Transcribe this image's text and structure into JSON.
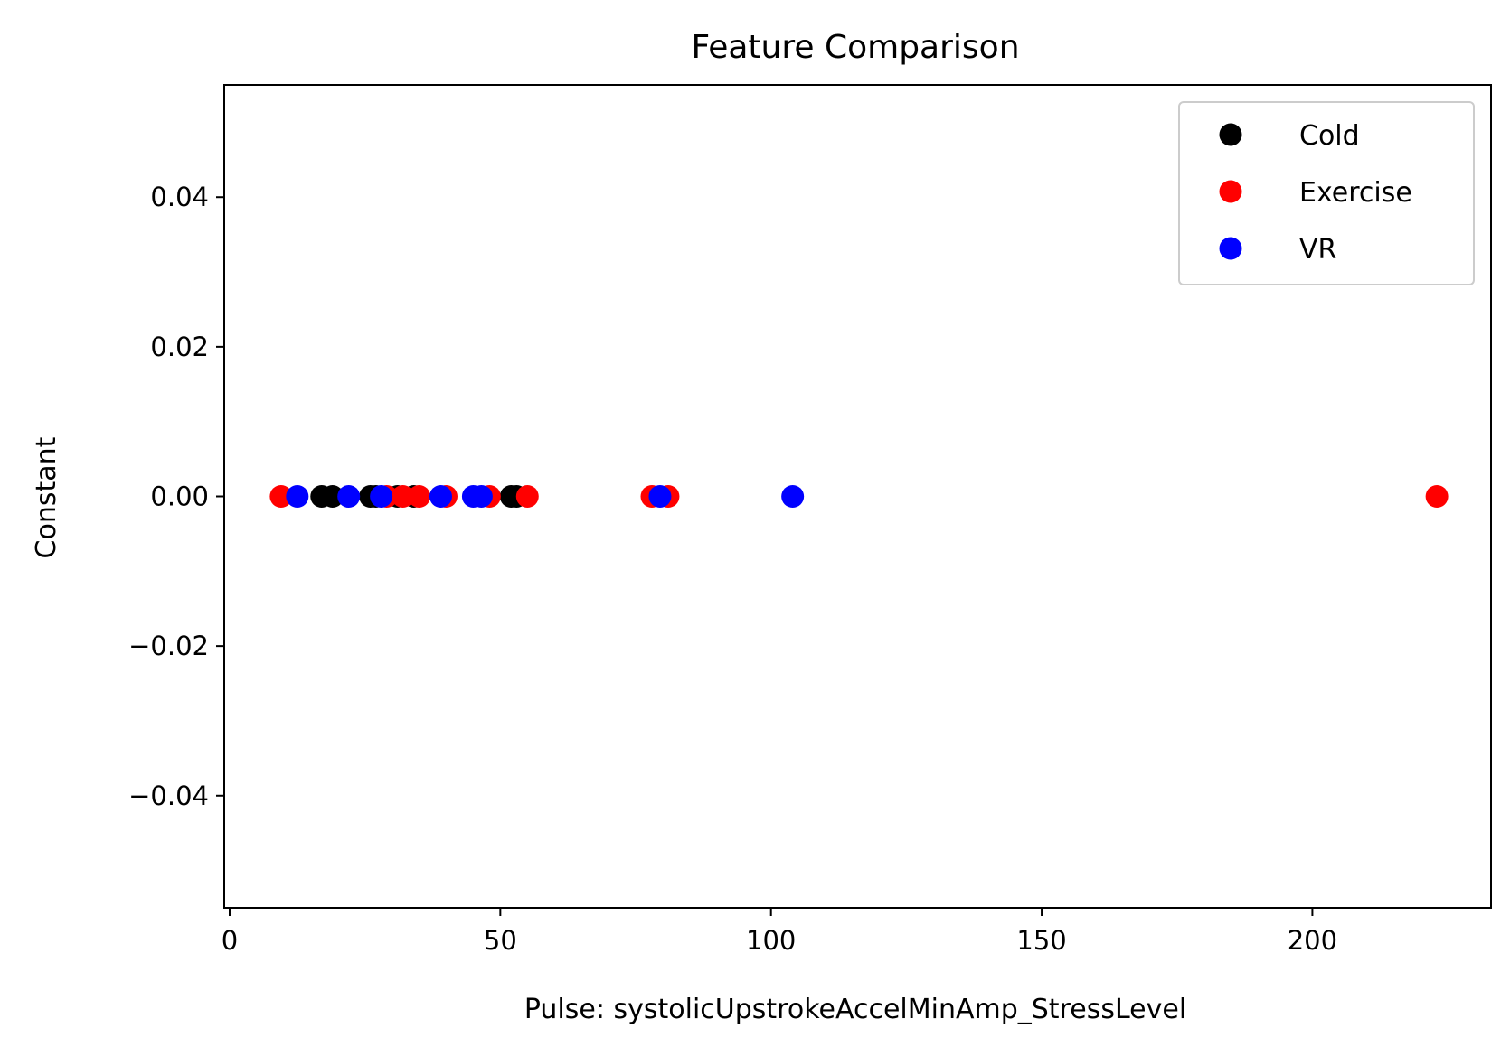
{
  "chart_data": {
    "type": "scatter",
    "title": "Feature Comparison",
    "xlabel": "Pulse: systolicUpstrokeAccelMinAmp_StressLevel",
    "ylabel": "Constant",
    "xlim": [
      -1,
      233
    ],
    "ylim": [
      -0.055,
      0.055
    ],
    "x_ticks": [
      0,
      50,
      100,
      150,
      200
    ],
    "x_tick_labels": [
      "0",
      "50",
      "100",
      "150",
      "200"
    ],
    "y_ticks": [
      -0.04,
      -0.02,
      0.0,
      0.02,
      0.04
    ],
    "y_tick_labels": [
      "−0.04",
      "−0.02",
      "0.00",
      "0.02",
      "0.04"
    ],
    "grid": false,
    "legend_position": "top-right",
    "series": [
      {
        "name": "Cold",
        "color": "#000000",
        "points": [
          {
            "x": 17,
            "y": 0
          },
          {
            "x": 19,
            "y": 0
          },
          {
            "x": 26,
            "y": 0
          },
          {
            "x": 27,
            "y": 0
          },
          {
            "x": 31,
            "y": 0
          },
          {
            "x": 34,
            "y": 0
          },
          {
            "x": 52,
            "y": 0
          },
          {
            "x": 53,
            "y": 0
          }
        ]
      },
      {
        "name": "Exercise",
        "color": "#ff0000",
        "points": [
          {
            "x": 9.5,
            "y": 0
          },
          {
            "x": 29,
            "y": 0
          },
          {
            "x": 32,
            "y": 0
          },
          {
            "x": 35,
            "y": 0
          },
          {
            "x": 40,
            "y": 0
          },
          {
            "x": 48,
            "y": 0
          },
          {
            "x": 55,
            "y": 0
          },
          {
            "x": 78,
            "y": 0
          },
          {
            "x": 81,
            "y": 0
          },
          {
            "x": 223,
            "y": 0
          }
        ]
      },
      {
        "name": "VR",
        "color": "#0000ff",
        "points": [
          {
            "x": 12.5,
            "y": 0
          },
          {
            "x": 22,
            "y": 0
          },
          {
            "x": 28,
            "y": 0
          },
          {
            "x": 39,
            "y": 0
          },
          {
            "x": 45,
            "y": 0
          },
          {
            "x": 46.5,
            "y": 0
          },
          {
            "x": 79.5,
            "y": 0
          },
          {
            "x": 104,
            "y": 0
          }
        ]
      }
    ]
  }
}
